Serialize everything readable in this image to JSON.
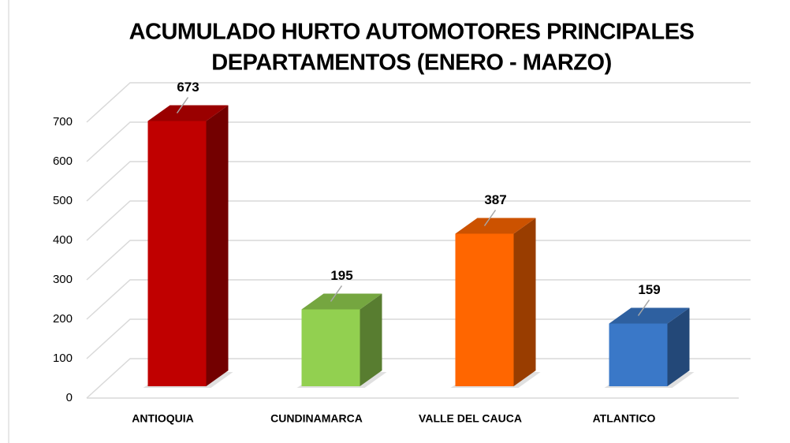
{
  "chart_data": {
    "type": "bar3d",
    "title": "ACUMULADO HURTO AUTOMOTORES  PRINCIPALES",
    "subtitle": "DEPARTAMENTOS (ENERO - MARZO)",
    "categories": [
      "ANTIOQUIA",
      "CUNDINAMARCA",
      "VALLE DEL CAUCA",
      "ATLANTICO"
    ],
    "values": [
      673,
      195,
      387,
      159
    ],
    "colors": [
      "#c00000",
      "#92d050",
      "#ff6600",
      "#3a78c8"
    ],
    "ylim": [
      0,
      700
    ],
    "yticks": [
      0,
      100,
      200,
      300,
      400,
      500,
      600,
      700
    ],
    "grid": true
  }
}
